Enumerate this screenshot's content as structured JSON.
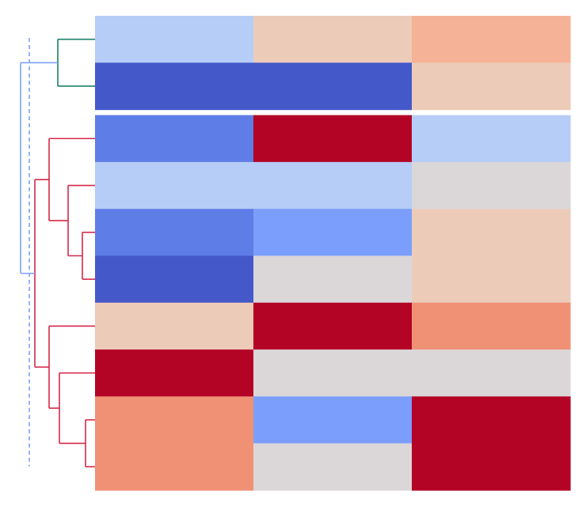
{
  "chart_data": {
    "type": "heatmap",
    "title": "",
    "xlabel": "",
    "ylabel": "",
    "colormap": "coolwarm",
    "value_range": [
      -3,
      3
    ],
    "n_columns": 3,
    "cluster_split_after_row": 2,
    "rows": [
      [
        -0.5,
        1.0,
        1.6
      ],
      [
        -2.8,
        -2.8,
        1.0
      ],
      [
        -2.2,
        3.0,
        -0.5
      ],
      [
        -0.5,
        -0.5,
        0.4
      ],
      [
        -2.2,
        -1.6,
        1.0
      ],
      [
        -2.8,
        0.4,
        1.0
      ],
      [
        1.0,
        3.0,
        2.2
      ],
      [
        3.0,
        0.4,
        0.4
      ],
      [
        2.2,
        -1.6,
        3.0
      ],
      [
        2.2,
        0.4,
        3.0
      ]
    ],
    "dendrogram": {
      "type": "row dendrogram",
      "colors": {
        "top_cluster": "#1a8068",
        "bottom_cluster": "#d62849",
        "root": "#7b9ff9"
      },
      "threshold_line_color": "#7b9ff9",
      "threshold_line_style": "dashed"
    }
  }
}
